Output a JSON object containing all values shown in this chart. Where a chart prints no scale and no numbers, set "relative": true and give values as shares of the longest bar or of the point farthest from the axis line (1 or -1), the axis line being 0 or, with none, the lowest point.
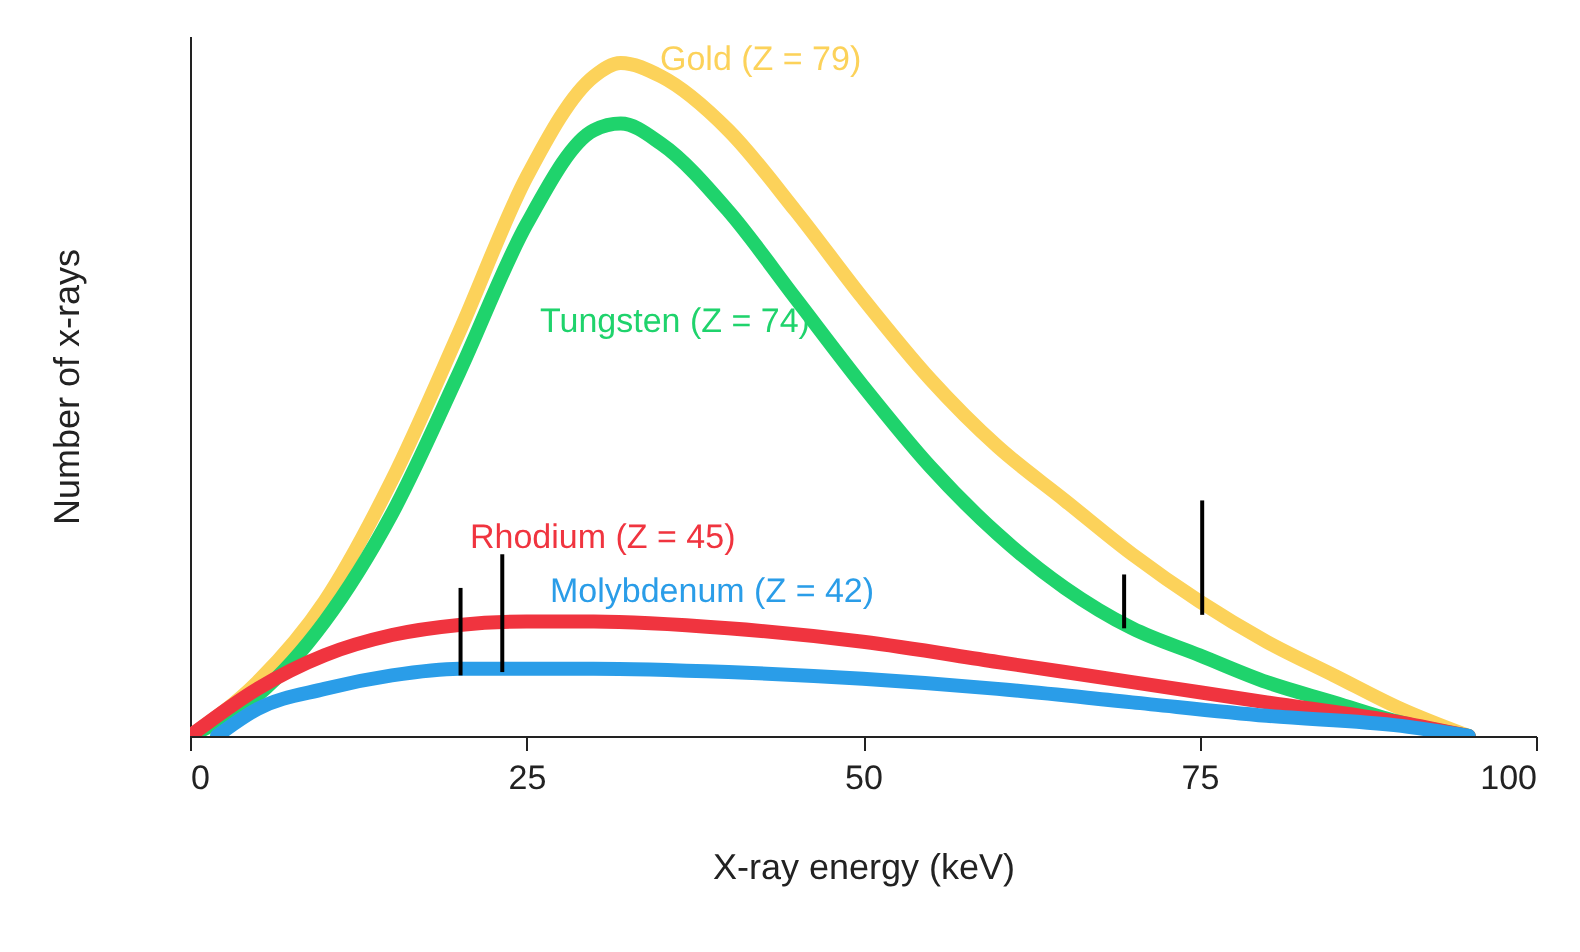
{
  "chart_data": {
    "type": "line",
    "relative": true,
    "xlabel": "X-ray energy (keV)",
    "ylabel": "Number of x-rays",
    "xlim": [
      0,
      100
    ],
    "xticks": [
      0,
      25,
      50,
      75,
      100
    ],
    "line_style": "solid",
    "marker": "none",
    "series": [
      {
        "name": "Gold (Z = 79)",
        "color": "#fcd25a",
        "x": [
          0,
          5,
          10,
          15,
          20,
          25,
          30,
          32,
          35,
          40,
          45,
          50,
          55,
          60,
          65,
          70,
          75,
          80,
          85,
          90,
          95
        ],
        "values": [
          0,
          0.08,
          0.2,
          0.38,
          0.6,
          0.83,
          0.98,
          1,
          0.98,
          0.9,
          0.78,
          0.65,
          0.53,
          0.43,
          0.35,
          0.27,
          0.2,
          0.14,
          0.09,
          0.04,
          0
        ]
      },
      {
        "name": "Tungsten (Z = 74)",
        "color": "#1fd36c",
        "x": [
          0,
          5,
          10,
          15,
          20,
          25,
          30,
          32,
          35,
          40,
          45,
          50,
          55,
          60,
          65,
          70,
          75,
          80,
          85,
          90,
          95
        ],
        "values": [
          0,
          0.06,
          0.17,
          0.33,
          0.54,
          0.76,
          0.9,
          0.91,
          0.88,
          0.78,
          0.65,
          0.52,
          0.4,
          0.3,
          0.22,
          0.16,
          0.12,
          0.08,
          0.05,
          0.02,
          0
        ]
      },
      {
        "name": "Rhodium (Z = 45)",
        "color": "#f0343f",
        "x": [
          0,
          5,
          10,
          15,
          20,
          25,
          30,
          40,
          50,
          60,
          70,
          80,
          90,
          95
        ],
        "values": [
          0,
          0.07,
          0.12,
          0.15,
          0.165,
          0.17,
          0.17,
          0.16,
          0.14,
          0.11,
          0.08,
          0.05,
          0.02,
          0
        ]
      },
      {
        "name": "Molybdenum (Z = 42)",
        "color": "#2a9de8",
        "x": [
          2,
          5,
          10,
          15,
          20,
          30,
          40,
          50,
          60,
          70,
          80,
          90,
          95
        ],
        "values": [
          0,
          0.04,
          0.07,
          0.09,
          0.1,
          0.1,
          0.095,
          0.085,
          0.07,
          0.05,
          0.03,
          0.015,
          0
        ]
      },
      {
        "color": "#000000",
        "x": [
          20.1,
          20.1
        ],
        "values": [
          0.09,
          0.22
        ]
      },
      {
        "color": "#000000",
        "x": [
          23.2,
          23.2
        ],
        "values": [
          0.095,
          0.27
        ]
      },
      {
        "color": "#000000",
        "x": [
          69.4,
          69.4
        ],
        "values": [
          0.16,
          0.24
        ]
      },
      {
        "color": "#000000",
        "x": [
          75.2,
          75.2
        ],
        "values": [
          0.18,
          0.35
        ]
      }
    ]
  }
}
